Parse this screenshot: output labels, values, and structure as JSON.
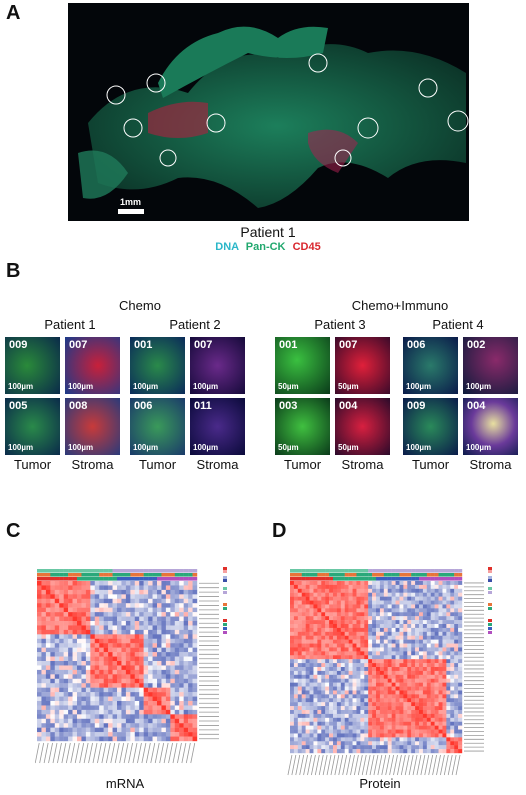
{
  "panels": {
    "a": "A",
    "b": "B",
    "c": "C",
    "d": "D"
  },
  "panel_a": {
    "scale_label": "1mm",
    "caption": "Patient 1",
    "legend": {
      "dna": "DNA",
      "panck": "Pan-CK",
      "cd45": "CD45"
    }
  },
  "panel_b": {
    "group_chemo": "Chemo",
    "group_chemo_immuno": "Chemo+Immuno",
    "patients": [
      {
        "name": "Patient 1",
        "tiles": [
          {
            "id": "009",
            "scale": "100µm",
            "type": "tumor"
          },
          {
            "id": "007",
            "scale": "100µm",
            "type": "stroma"
          },
          {
            "id": "005",
            "scale": "100µm",
            "type": "tumor"
          },
          {
            "id": "008",
            "scale": "100µm",
            "type": "stroma"
          }
        ]
      },
      {
        "name": "Patient 2",
        "tiles": [
          {
            "id": "001",
            "scale": "100µm",
            "type": "tumor"
          },
          {
            "id": "007",
            "scale": "100µm",
            "type": "stroma"
          },
          {
            "id": "006",
            "scale": "100µm",
            "type": "tumor"
          },
          {
            "id": "011",
            "scale": "100µm",
            "type": "stroma"
          }
        ]
      },
      {
        "name": "Patient 3",
        "tiles": [
          {
            "id": "001",
            "scale": "50µm",
            "type": "tumor"
          },
          {
            "id": "007",
            "scale": "50µm",
            "type": "stroma"
          },
          {
            "id": "003",
            "scale": "50µm",
            "type": "tumor"
          },
          {
            "id": "004",
            "scale": "50µm",
            "type": "stroma"
          }
        ]
      },
      {
        "name": "Patient 4",
        "tiles": [
          {
            "id": "006",
            "scale": "100µm",
            "type": "tumor"
          },
          {
            "id": "002",
            "scale": "100µm",
            "type": "stroma"
          },
          {
            "id": "009",
            "scale": "100µm",
            "type": "tumor"
          },
          {
            "id": "004",
            "scale": "100µm",
            "type": "stroma"
          }
        ]
      }
    ],
    "tumor_label": "Tumor",
    "stroma_label": "Stroma"
  },
  "panel_c": {
    "caption": "mRNA"
  },
  "panel_d": {
    "caption": "Protein"
  },
  "colors": {
    "red": "#e0302a",
    "blue": "#3a4fa8",
    "green": "#2aa87a",
    "white": "#f5f5f5"
  }
}
